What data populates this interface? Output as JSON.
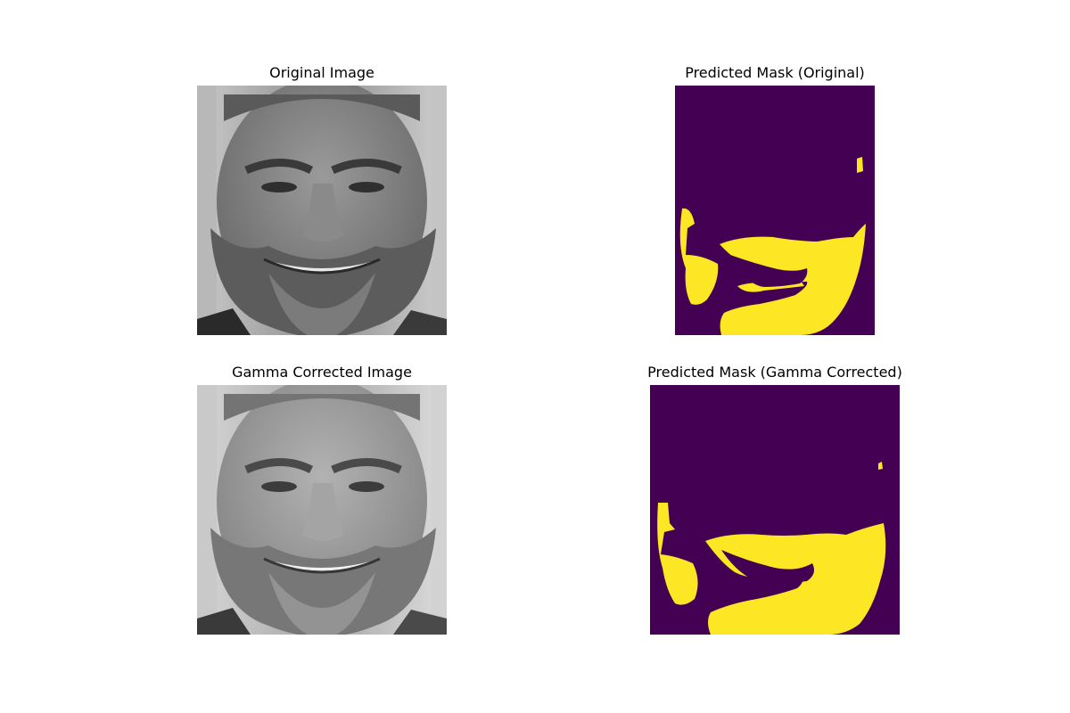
{
  "figure": {
    "panels": [
      {
        "title": "Original Image",
        "kind": "grayscale-photo"
      },
      {
        "title": "Predicted Mask (Original)",
        "kind": "binary-mask"
      },
      {
        "title": "Gamma Corrected Image",
        "kind": "grayscale-photo"
      },
      {
        "title": "Predicted Mask (Gamma Corrected)",
        "kind": "binary-mask"
      }
    ]
  },
  "colors": {
    "mask_background": "#440154",
    "mask_foreground": "#fde725"
  }
}
